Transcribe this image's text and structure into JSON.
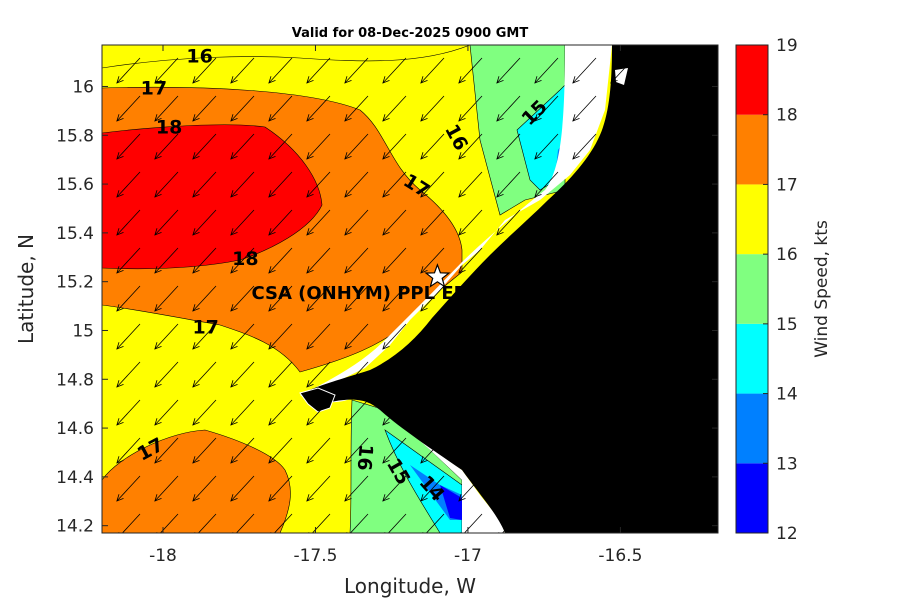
{
  "chart_data": {
    "type": "heatmap",
    "title": "Valid for 08-Dec-2025 0900 GMT",
    "xlabel": "Longitude, W",
    "ylabel": "Latitude, N",
    "xlim": [
      -18.2,
      -16.18
    ],
    "ylim": [
      14.17,
      16.17
    ],
    "x_ticks": [
      "-18",
      "-17.5",
      "-17",
      "-16.5"
    ],
    "x_tick_values": [
      -18,
      -17.5,
      -17,
      -16.5
    ],
    "y_ticks": [
      "16",
      "15.8",
      "15.6",
      "15.4",
      "15.2",
      "15",
      "14.8",
      "14.6",
      "14.4",
      "14.2"
    ],
    "y_tick_values": [
      16,
      15.8,
      15.6,
      15.4,
      15.2,
      15,
      14.8,
      14.6,
      14.4,
      14.2
    ],
    "colorbar": {
      "label": "Wind Speed, kts",
      "ticks": [
        "12",
        "13",
        "14",
        "15",
        "16",
        "17",
        "18",
        "19"
      ],
      "levels": [
        12,
        13,
        14,
        15,
        16,
        17,
        18,
        19
      ],
      "colors": [
        "#0000ff",
        "#0080ff",
        "#00ffff",
        "#80ff80",
        "#ffff00",
        "#ff8000",
        "#ff0000"
      ]
    },
    "contour_labels": [
      {
        "text": "16",
        "lon": -17.88,
        "lat": 16.12,
        "rot": 0
      },
      {
        "text": "17",
        "lon": -18.03,
        "lat": 15.99,
        "rot": 0
      },
      {
        "text": "18",
        "lon": -17.98,
        "lat": 15.83,
        "rot": 0
      },
      {
        "text": "16",
        "lon": -17.04,
        "lat": 15.79,
        "rot": 62
      },
      {
        "text": "15",
        "lon": -16.78,
        "lat": 15.89,
        "rot": -45
      },
      {
        "text": "17",
        "lon": -17.17,
        "lat": 15.59,
        "rot": 32
      },
      {
        "text": "18",
        "lon": -17.73,
        "lat": 15.29,
        "rot": 0
      },
      {
        "text": "17",
        "lon": -17.86,
        "lat": 15.01,
        "rot": 0
      },
      {
        "text": "17",
        "lon": -18.04,
        "lat": 14.51,
        "rot": -28
      },
      {
        "text": "16",
        "lon": -17.34,
        "lat": 14.48,
        "rot": 95
      },
      {
        "text": "15",
        "lon": -17.23,
        "lat": 14.42,
        "rot": 60
      },
      {
        "text": "14",
        "lon": -17.12,
        "lat": 14.35,
        "rot": 48
      }
    ],
    "station": {
      "label": "CSA (ONHYM) PPL EP",
      "lon": -17.1,
      "lat": 15.22
    },
    "wind_direction": "from north-east",
    "land_color": "#000000"
  }
}
